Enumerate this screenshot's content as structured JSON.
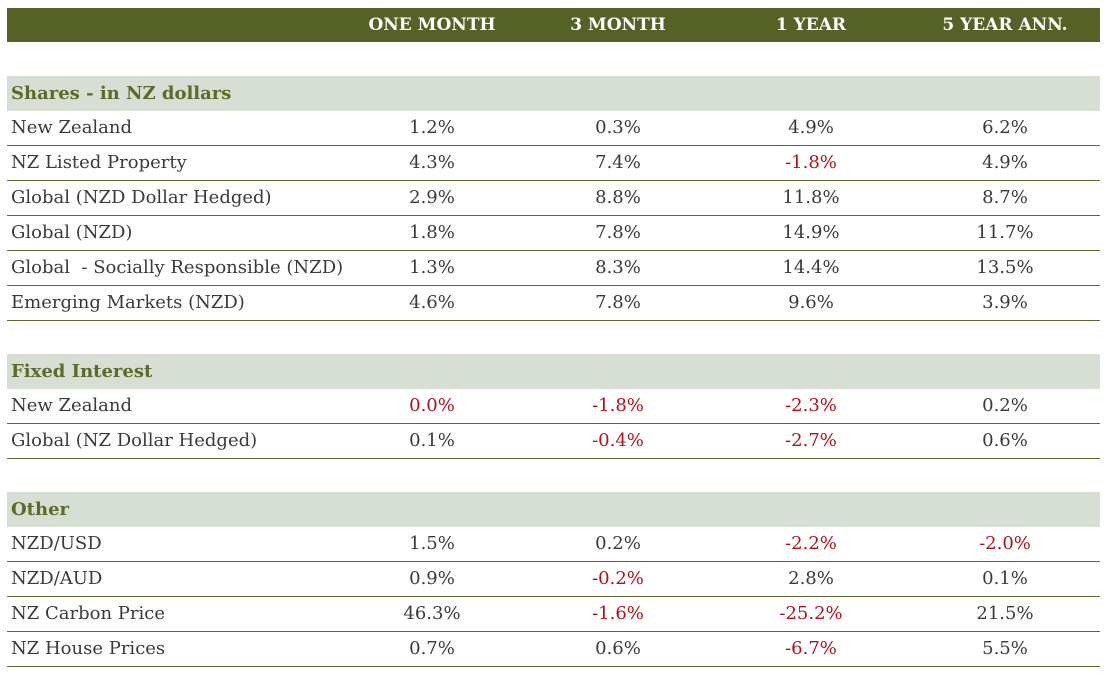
{
  "header": {
    "col1": "ONE MONTH",
    "col2": "3 MONTH",
    "col3": "1 YEAR",
    "col4": "5 YEAR ANN."
  },
  "colors": {
    "header_bg": "#556125",
    "section_bg": "#d7dfd5",
    "negative": "#b0121c",
    "rule": "#5e6a30"
  },
  "sections": [
    {
      "title": "Shares - in NZ dollars",
      "rows": [
        {
          "label": "New Zealand",
          "v": [
            "1.2%",
            "0.3%",
            "4.9%",
            "6.2%"
          ]
        },
        {
          "label": "NZ Listed Property",
          "v": [
            "4.3%",
            "7.4%",
            "-1.8%",
            "4.9%"
          ]
        },
        {
          "label": "Global (NZD Dollar Hedged)",
          "v": [
            "2.9%",
            "8.8%",
            "11.8%",
            "8.7%"
          ]
        },
        {
          "label": "Global (NZD)",
          "v": [
            "1.8%",
            "7.8%",
            "14.9%",
            "11.7%"
          ]
        },
        {
          "label": "Global  - Socially Responsible (NZD)",
          "v": [
            "1.3%",
            "8.3%",
            "14.4%",
            "13.5%"
          ]
        },
        {
          "label": "Emerging Markets (NZD)",
          "v": [
            "4.6%",
            "7.8%",
            "9.6%",
            "3.9%"
          ]
        }
      ]
    },
    {
      "title": "Fixed Interest",
      "rows": [
        {
          "label": "New Zealand",
          "v": [
            "0.0%",
            "-1.8%",
            "-2.3%",
            "0.2%"
          ]
        },
        {
          "label": "Global (NZ Dollar Hedged)",
          "v": [
            "0.1%",
            "-0.4%",
            "-2.7%",
            "0.6%"
          ]
        }
      ]
    },
    {
      "title": "Other",
      "rows": [
        {
          "label": "NZD/USD",
          "v": [
            "1.5%",
            "0.2%",
            "-2.2%",
            "-2.0%"
          ]
        },
        {
          "label": "NZD/AUD",
          "v": [
            "0.9%",
            "-0.2%",
            "2.8%",
            "0.1%"
          ]
        },
        {
          "label": "NZ Carbon Price",
          "v": [
            "46.3%",
            "-1.6%",
            "-25.2%",
            "21.5%"
          ]
        },
        {
          "label": "NZ House Prices",
          "v": [
            "0.7%",
            "0.6%",
            "-6.7%",
            "5.5%"
          ]
        }
      ]
    }
  ]
}
